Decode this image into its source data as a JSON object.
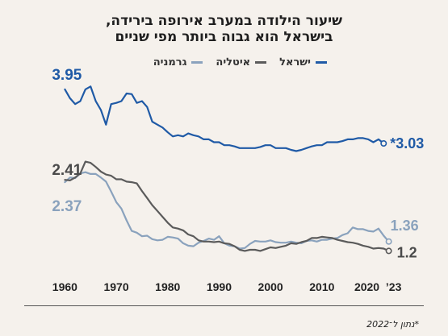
{
  "title_line1": "שיעור הילודה במערב אירופה בירידה,",
  "title_line2": "בישראל הוא גבוה ביותר מפי שניים",
  "footnote": "*נתון ל־2022",
  "chart_data": {
    "type": "line",
    "title": "שיעור הילודה במערב אירופה בירידה, בישראל הוא גבוה ביותר מפי שניים",
    "xlabel": "",
    "ylabel": "",
    "x_ticks": [
      "1960",
      "1970",
      "1980",
      "1990",
      "2000",
      "2010",
      "2020",
      "’23"
    ],
    "xlim": [
      1959,
      2024
    ],
    "ylim": [
      1.0,
      4.1
    ],
    "legend_position": "top",
    "grid": false,
    "series": [
      {
        "name": "ישראל",
        "color": "#1f5aa6",
        "start_label": "3.95",
        "end_label": "*3.03",
        "points": [
          [
            1960,
            3.95
          ],
          [
            1961,
            3.8
          ],
          [
            1962,
            3.7
          ],
          [
            1963,
            3.75
          ],
          [
            1964,
            3.95
          ],
          [
            1965,
            4.0
          ],
          [
            1966,
            3.75
          ],
          [
            1967,
            3.6
          ],
          [
            1968,
            3.35
          ],
          [
            1969,
            3.7
          ],
          [
            1970,
            3.72
          ],
          [
            1971,
            3.75
          ],
          [
            1972,
            3.88
          ],
          [
            1973,
            3.87
          ],
          [
            1974,
            3.72
          ],
          [
            1975,
            3.75
          ],
          [
            1976,
            3.65
          ],
          [
            1977,
            3.4
          ],
          [
            1978,
            3.35
          ],
          [
            1979,
            3.3
          ],
          [
            1980,
            3.22
          ],
          [
            1981,
            3.15
          ],
          [
            1982,
            3.17
          ],
          [
            1983,
            3.15
          ],
          [
            1984,
            3.2
          ],
          [
            1985,
            3.17
          ],
          [
            1986,
            3.15
          ],
          [
            1987,
            3.1
          ],
          [
            1988,
            3.1
          ],
          [
            1989,
            3.05
          ],
          [
            1990,
            3.05
          ],
          [
            1991,
            3.0
          ],
          [
            1992,
            3.0
          ],
          [
            1993,
            2.98
          ],
          [
            1994,
            2.95
          ],
          [
            1995,
            2.95
          ],
          [
            1996,
            2.95
          ],
          [
            1997,
            2.95
          ],
          [
            1998,
            2.97
          ],
          [
            1999,
            3.0
          ],
          [
            2000,
            3.0
          ],
          [
            2001,
            2.95
          ],
          [
            2002,
            2.95
          ],
          [
            2003,
            2.95
          ],
          [
            2004,
            2.92
          ],
          [
            2005,
            2.9
          ],
          [
            2006,
            2.92
          ],
          [
            2007,
            2.95
          ],
          [
            2008,
            2.98
          ],
          [
            2009,
            3.0
          ],
          [
            2010,
            3.0
          ],
          [
            2011,
            3.05
          ],
          [
            2012,
            3.05
          ],
          [
            2013,
            3.05
          ],
          [
            2014,
            3.07
          ],
          [
            2015,
            3.1
          ],
          [
            2016,
            3.1
          ],
          [
            2017,
            3.12
          ],
          [
            2018,
            3.12
          ],
          [
            2019,
            3.1
          ],
          [
            2020,
            3.05
          ],
          [
            2021,
            3.1
          ],
          [
            2022,
            3.03
          ]
        ]
      },
      {
        "name": "איטליה",
        "color": "#5b5b5b",
        "start_label": "2.41",
        "end_label": "1.2",
        "points": [
          [
            1960,
            2.41
          ],
          [
            1961,
            2.4
          ],
          [
            1962,
            2.45
          ],
          [
            1963,
            2.52
          ],
          [
            1964,
            2.72
          ],
          [
            1965,
            2.7
          ],
          [
            1966,
            2.63
          ],
          [
            1967,
            2.55
          ],
          [
            1968,
            2.5
          ],
          [
            1969,
            2.48
          ],
          [
            1970,
            2.42
          ],
          [
            1971,
            2.42
          ],
          [
            1972,
            2.38
          ],
          [
            1973,
            2.37
          ],
          [
            1974,
            2.35
          ],
          [
            1975,
            2.22
          ],
          [
            1976,
            2.1
          ],
          [
            1977,
            1.98
          ],
          [
            1978,
            1.88
          ],
          [
            1979,
            1.78
          ],
          [
            1980,
            1.68
          ],
          [
            1981,
            1.6
          ],
          [
            1982,
            1.58
          ],
          [
            1983,
            1.55
          ],
          [
            1984,
            1.48
          ],
          [
            1985,
            1.45
          ],
          [
            1986,
            1.38
          ],
          [
            1987,
            1.36
          ],
          [
            1988,
            1.36
          ],
          [
            1989,
            1.35
          ],
          [
            1990,
            1.36
          ],
          [
            1991,
            1.33
          ],
          [
            1992,
            1.32
          ],
          [
            1993,
            1.28
          ],
          [
            1994,
            1.22
          ],
          [
            1995,
            1.2
          ],
          [
            1996,
            1.22
          ],
          [
            1997,
            1.22
          ],
          [
            1998,
            1.2
          ],
          [
            1999,
            1.23
          ],
          [
            2000,
            1.26
          ],
          [
            2001,
            1.25
          ],
          [
            2002,
            1.27
          ],
          [
            2003,
            1.29
          ],
          [
            2004,
            1.33
          ],
          [
            2005,
            1.32
          ],
          [
            2006,
            1.35
          ],
          [
            2007,
            1.37
          ],
          [
            2008,
            1.42
          ],
          [
            2009,
            1.42
          ],
          [
            2010,
            1.44
          ],
          [
            2011,
            1.43
          ],
          [
            2012,
            1.42
          ],
          [
            2013,
            1.39
          ],
          [
            2014,
            1.37
          ],
          [
            2015,
            1.35
          ],
          [
            2016,
            1.34
          ],
          [
            2017,
            1.32
          ],
          [
            2018,
            1.29
          ],
          [
            2019,
            1.27
          ],
          [
            2020,
            1.24
          ],
          [
            2021,
            1.25
          ],
          [
            2022,
            1.24
          ],
          [
            2023,
            1.2
          ]
        ]
      },
      {
        "name": "גרמניה",
        "color": "#8aa2bd",
        "start_label": "2.37",
        "end_label": "1.36",
        "points": [
          [
            1960,
            2.37
          ],
          [
            1961,
            2.45
          ],
          [
            1962,
            2.44
          ],
          [
            1963,
            2.52
          ],
          [
            1964,
            2.54
          ],
          [
            1965,
            2.51
          ],
          [
            1966,
            2.51
          ],
          [
            1967,
            2.45
          ],
          [
            1968,
            2.38
          ],
          [
            1969,
            2.21
          ],
          [
            1970,
            2.03
          ],
          [
            1971,
            1.92
          ],
          [
            1972,
            1.72
          ],
          [
            1973,
            1.54
          ],
          [
            1974,
            1.51
          ],
          [
            1975,
            1.45
          ],
          [
            1976,
            1.46
          ],
          [
            1977,
            1.4
          ],
          [
            1978,
            1.38
          ],
          [
            1979,
            1.39
          ],
          [
            1980,
            1.44
          ],
          [
            1981,
            1.43
          ],
          [
            1982,
            1.41
          ],
          [
            1983,
            1.33
          ],
          [
            1984,
            1.29
          ],
          [
            1985,
            1.28
          ],
          [
            1986,
            1.34
          ],
          [
            1987,
            1.37
          ],
          [
            1988,
            1.41
          ],
          [
            1989,
            1.39
          ],
          [
            1990,
            1.45
          ],
          [
            1991,
            1.33
          ],
          [
            1992,
            1.29
          ],
          [
            1993,
            1.28
          ],
          [
            1994,
            1.24
          ],
          [
            1995,
            1.25
          ],
          [
            1996,
            1.32
          ],
          [
            1997,
            1.37
          ],
          [
            1998,
            1.36
          ],
          [
            1999,
            1.36
          ],
          [
            2000,
            1.38
          ],
          [
            2001,
            1.35
          ],
          [
            2002,
            1.34
          ],
          [
            2003,
            1.34
          ],
          [
            2004,
            1.36
          ],
          [
            2005,
            1.34
          ],
          [
            2006,
            1.33
          ],
          [
            2007,
            1.37
          ],
          [
            2008,
            1.38
          ],
          [
            2009,
            1.36
          ],
          [
            2010,
            1.39
          ],
          [
            2011,
            1.39
          ],
          [
            2012,
            1.41
          ],
          [
            2013,
            1.42
          ],
          [
            2014,
            1.47
          ],
          [
            2015,
            1.5
          ],
          [
            2016,
            1.6
          ],
          [
            2017,
            1.57
          ],
          [
            2018,
            1.57
          ],
          [
            2019,
            1.54
          ],
          [
            2020,
            1.53
          ],
          [
            2021,
            1.58
          ],
          [
            2022,
            1.46
          ],
          [
            2023,
            1.36
          ]
        ]
      }
    ]
  }
}
